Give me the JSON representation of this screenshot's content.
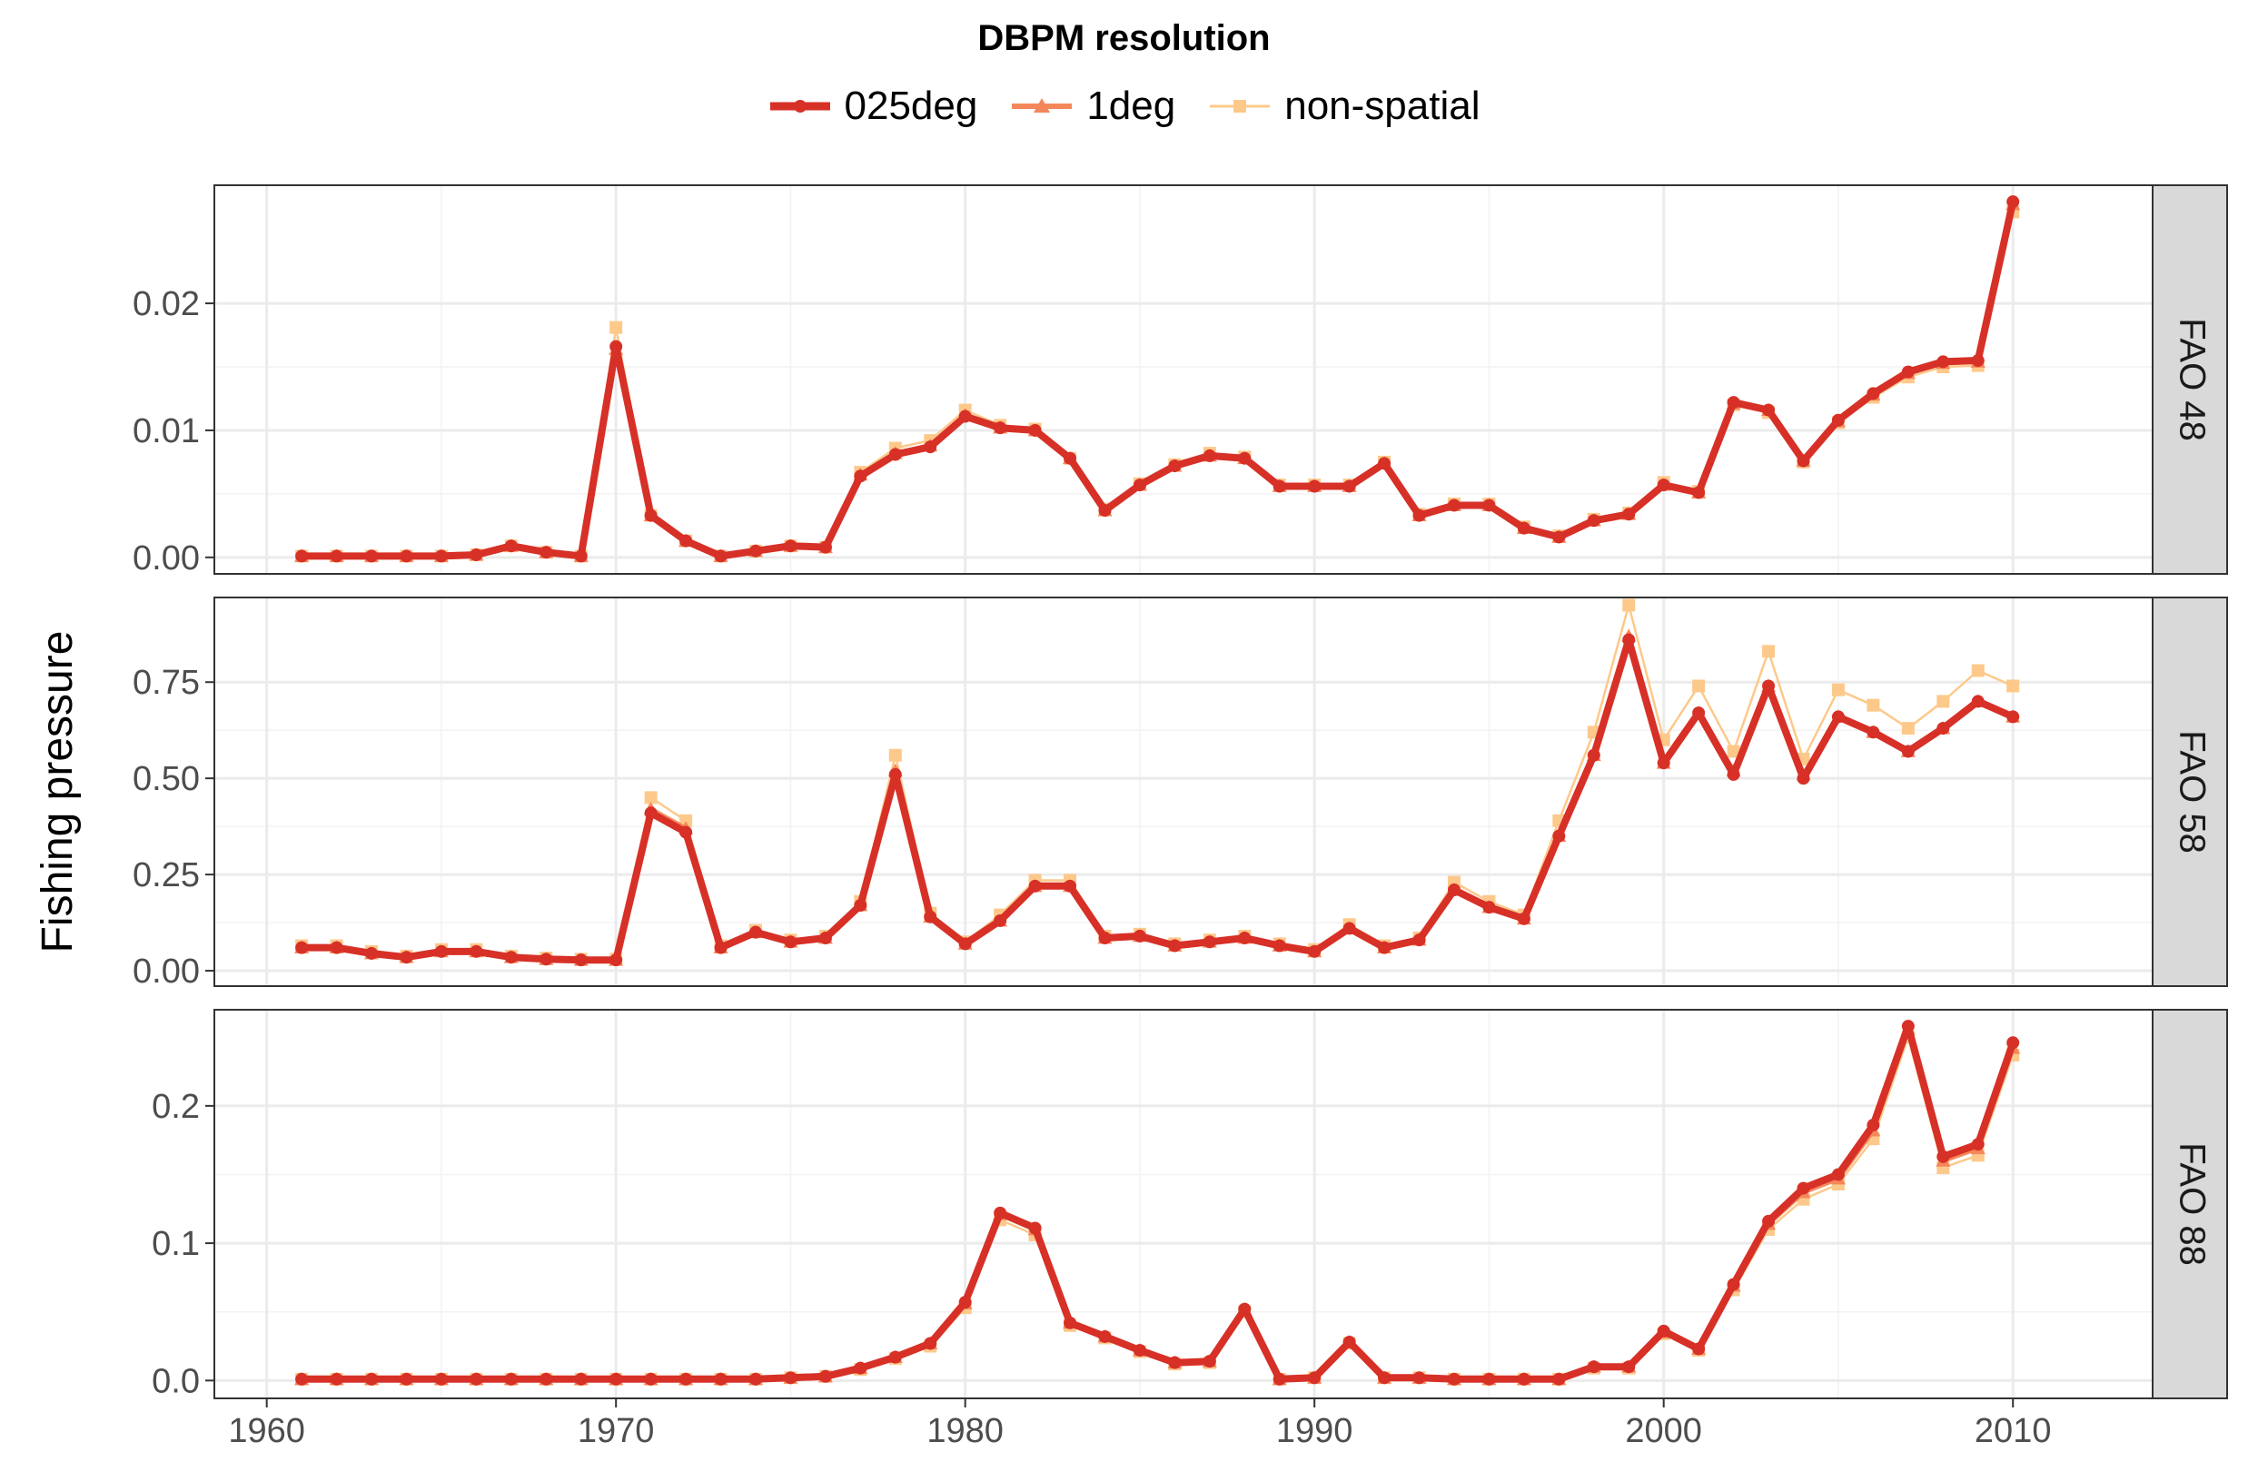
{
  "chart_data": {
    "type": "line",
    "legend": {
      "title": "DBPM resolution",
      "position": "top",
      "entries": [
        {
          "name": "025deg",
          "color": "#d73027",
          "marker": "circle"
        },
        {
          "name": "1deg",
          "color": "#f4875a",
          "marker": "triangle"
        },
        {
          "name": "non-spatial",
          "color": "#fdc98b",
          "marker": "square"
        }
      ]
    },
    "ylabel": "Fishing pressure",
    "xlabel": "",
    "xlim": [
      1958.5,
      2014
    ],
    "x_ticks": [
      1960,
      1970,
      1980,
      1990,
      2000,
      2010
    ],
    "grid": true,
    "facets": [
      {
        "label": "FAO 48",
        "ylim": [
          -0.0013,
          0.0293
        ],
        "y_ticks": [
          0.0,
          0.01,
          0.02
        ],
        "y_tick_labels": [
          "0.00",
          "0.01",
          "0.02"
        ],
        "x": [
          1961,
          1962,
          1963,
          1964,
          1965,
          1966,
          1967,
          1968,
          1969,
          1970,
          1971,
          1972,
          1973,
          1974,
          1975,
          1976,
          1977,
          1978,
          1979,
          1980,
          1981,
          1982,
          1983,
          1984,
          1985,
          1986,
          1987,
          1988,
          1989,
          1990,
          1991,
          1992,
          1993,
          1994,
          1995,
          1996,
          1997,
          1998,
          1999,
          2000,
          2001,
          2002,
          2003,
          2004,
          2005,
          2006,
          2007,
          2008,
          2009,
          2010
        ],
        "series": [
          {
            "name": "025deg",
            "values": [
              0.0001,
              0.0001,
              0.0001,
              0.0001,
              0.0001,
              0.0002,
              0.0009,
              0.0004,
              0.0001,
              0.0166,
              0.0033,
              0.0013,
              0.0001,
              0.0005,
              0.0009,
              0.0008,
              0.0064,
              0.0081,
              0.0087,
              0.0111,
              0.0102,
              0.01,
              0.0078,
              0.0037,
              0.0057,
              0.0072,
              0.008,
              0.0078,
              0.0056,
              0.0056,
              0.0056,
              0.0074,
              0.0033,
              0.0041,
              0.0041,
              0.0023,
              0.0016,
              0.0029,
              0.0034,
              0.0057,
              0.0051,
              0.0122,
              0.0116,
              0.0076,
              0.0108,
              0.0129,
              0.0146,
              0.0154,
              0.0155,
              0.028
            ]
          },
          {
            "name": "1deg",
            "values": [
              0.0001,
              0.0001,
              0.0001,
              0.0001,
              0.0001,
              0.0002,
              0.0009,
              0.0004,
              0.0001,
              0.0164,
              0.0033,
              0.0013,
              0.0001,
              0.0005,
              0.0009,
              0.0008,
              0.0065,
              0.0082,
              0.0088,
              0.0112,
              0.0102,
              0.01,
              0.0078,
              0.0037,
              0.0057,
              0.0072,
              0.008,
              0.0078,
              0.0056,
              0.0056,
              0.0056,
              0.0074,
              0.0033,
              0.0041,
              0.0041,
              0.0023,
              0.0016,
              0.0029,
              0.0034,
              0.0057,
              0.0051,
              0.0121,
              0.0116,
              0.0076,
              0.0107,
              0.0128,
              0.0145,
              0.0153,
              0.0154,
              0.0278
            ]
          },
          {
            "name": "non-spatial",
            "values": [
              0.0001,
              0.0001,
              0.0001,
              0.0001,
              0.0001,
              0.0002,
              0.0009,
              0.0004,
              0.0001,
              0.0181,
              0.0033,
              0.0013,
              0.0001,
              0.0005,
              0.0009,
              0.0008,
              0.0067,
              0.0086,
              0.0092,
              0.0116,
              0.0104,
              0.0101,
              0.0078,
              0.0038,
              0.0058,
              0.0073,
              0.0082,
              0.0079,
              0.0057,
              0.0057,
              0.0057,
              0.0075,
              0.0034,
              0.0042,
              0.0042,
              0.0024,
              0.0017,
              0.003,
              0.0035,
              0.0059,
              0.0052,
              0.012,
              0.0114,
              0.0075,
              0.0106,
              0.0126,
              0.0142,
              0.015,
              0.0151,
              0.0272
            ]
          }
        ]
      },
      {
        "label": "FAO 58",
        "ylim": [
          -0.04,
          0.97
        ],
        "y_ticks": [
          0.0,
          0.25,
          0.5,
          0.75
        ],
        "y_tick_labels": [
          "0.00",
          "0.25",
          "0.50",
          "0.75"
        ],
        "x": [
          1961,
          1962,
          1963,
          1964,
          1965,
          1966,
          1967,
          1968,
          1969,
          1970,
          1971,
          1972,
          1973,
          1974,
          1975,
          1976,
          1977,
          1978,
          1979,
          1980,
          1981,
          1982,
          1983,
          1984,
          1985,
          1986,
          1987,
          1988,
          1989,
          1990,
          1991,
          1992,
          1993,
          1994,
          1995,
          1996,
          1997,
          1998,
          1999,
          2000,
          2001,
          2002,
          2003,
          2004,
          2005,
          2006,
          2007,
          2008,
          2009,
          2010
        ],
        "series": [
          {
            "name": "025deg",
            "values": [
              0.06,
              0.06,
              0.045,
              0.035,
              0.05,
              0.05,
              0.035,
              0.03,
              0.028,
              0.028,
              0.41,
              0.36,
              0.06,
              0.1,
              0.075,
              0.085,
              0.17,
              0.51,
              0.14,
              0.07,
              0.13,
              0.22,
              0.22,
              0.085,
              0.09,
              0.065,
              0.075,
              0.085,
              0.065,
              0.05,
              0.11,
              0.06,
              0.08,
              0.21,
              0.165,
              0.135,
              0.35,
              0.56,
              0.86,
              0.54,
              0.67,
              0.51,
              0.74,
              0.5,
              0.66,
              0.62,
              0.57,
              0.63,
              0.7,
              0.66
            ]
          },
          {
            "name": "1deg",
            "values": [
              0.06,
              0.06,
              0.045,
              0.035,
              0.05,
              0.05,
              0.035,
              0.03,
              0.028,
              0.028,
              0.42,
              0.37,
              0.06,
              0.1,
              0.075,
              0.085,
              0.17,
              0.52,
              0.14,
              0.07,
              0.13,
              0.22,
              0.22,
              0.085,
              0.09,
              0.065,
              0.075,
              0.085,
              0.065,
              0.05,
              0.11,
              0.06,
              0.08,
              0.21,
              0.165,
              0.135,
              0.35,
              0.56,
              0.87,
              0.54,
              0.67,
              0.52,
              0.74,
              0.51,
              0.66,
              0.62,
              0.57,
              0.63,
              0.7,
              0.66
            ]
          },
          {
            "name": "non-spatial",
            "values": [
              0.065,
              0.065,
              0.05,
              0.038,
              0.055,
              0.055,
              0.038,
              0.033,
              0.03,
              0.03,
              0.45,
              0.39,
              0.065,
              0.105,
              0.08,
              0.09,
              0.18,
              0.56,
              0.15,
              0.075,
              0.145,
              0.235,
              0.235,
              0.09,
              0.095,
              0.07,
              0.08,
              0.09,
              0.07,
              0.055,
              0.12,
              0.065,
              0.085,
              0.23,
              0.18,
              0.145,
              0.39,
              0.62,
              0.95,
              0.6,
              0.74,
              0.57,
              0.83,
              0.55,
              0.73,
              0.69,
              0.63,
              0.7,
              0.78,
              0.74
            ]
          }
        ]
      },
      {
        "label": "FAO 88",
        "ylim": [
          -0.013,
          0.27
        ],
        "y_ticks": [
          0.0,
          0.1,
          0.2
        ],
        "y_tick_labels": [
          "0.0",
          "0.1",
          "0.2"
        ],
        "x": [
          1961,
          1962,
          1963,
          1964,
          1965,
          1966,
          1967,
          1968,
          1969,
          1970,
          1971,
          1972,
          1973,
          1974,
          1975,
          1976,
          1977,
          1978,
          1979,
          1980,
          1981,
          1982,
          1983,
          1984,
          1985,
          1986,
          1987,
          1988,
          1989,
          1990,
          1991,
          1992,
          1993,
          1994,
          1995,
          1996,
          1997,
          1998,
          1999,
          2000,
          2001,
          2002,
          2003,
          2004,
          2005,
          2006,
          2007,
          2008,
          2009,
          2010
        ],
        "series": [
          {
            "name": "025deg",
            "values": [
              0.001,
              0.001,
              0.001,
              0.001,
              0.001,
              0.001,
              0.001,
              0.001,
              0.001,
              0.001,
              0.001,
              0.001,
              0.001,
              0.001,
              0.002,
              0.003,
              0.009,
              0.017,
              0.027,
              0.057,
              0.122,
              0.111,
              0.042,
              0.032,
              0.022,
              0.013,
              0.014,
              0.052,
              0.001,
              0.002,
              0.028,
              0.002,
              0.002,
              0.001,
              0.001,
              0.001,
              0.001,
              0.01,
              0.01,
              0.036,
              0.023,
              0.07,
              0.116,
              0.14,
              0.15,
              0.186,
              0.258,
              0.163,
              0.172,
              0.246
            ]
          },
          {
            "name": "1deg",
            "values": [
              0.001,
              0.001,
              0.001,
              0.001,
              0.001,
              0.001,
              0.001,
              0.001,
              0.001,
              0.001,
              0.001,
              0.001,
              0.001,
              0.001,
              0.002,
              0.003,
              0.009,
              0.017,
              0.027,
              0.056,
              0.121,
              0.11,
              0.042,
              0.032,
              0.022,
              0.013,
              0.014,
              0.052,
              0.001,
              0.002,
              0.028,
              0.002,
              0.002,
              0.001,
              0.001,
              0.001,
              0.001,
              0.01,
              0.01,
              0.035,
              0.023,
              0.069,
              0.114,
              0.137,
              0.147,
              0.182,
              0.256,
              0.16,
              0.169,
              0.242
            ]
          },
          {
            "name": "non-spatial",
            "values": [
              0.001,
              0.001,
              0.001,
              0.001,
              0.001,
              0.001,
              0.001,
              0.001,
              0.001,
              0.001,
              0.001,
              0.001,
              0.001,
              0.001,
              0.002,
              0.003,
              0.008,
              0.016,
              0.025,
              0.053,
              0.117,
              0.106,
              0.04,
              0.031,
              0.021,
              0.012,
              0.013,
              0.05,
              0.001,
              0.002,
              0.027,
              0.002,
              0.002,
              0.001,
              0.001,
              0.001,
              0.001,
              0.009,
              0.009,
              0.034,
              0.022,
              0.066,
              0.11,
              0.132,
              0.143,
              0.176,
              0.25,
              0.155,
              0.164,
              0.237
            ]
          }
        ]
      }
    ]
  }
}
